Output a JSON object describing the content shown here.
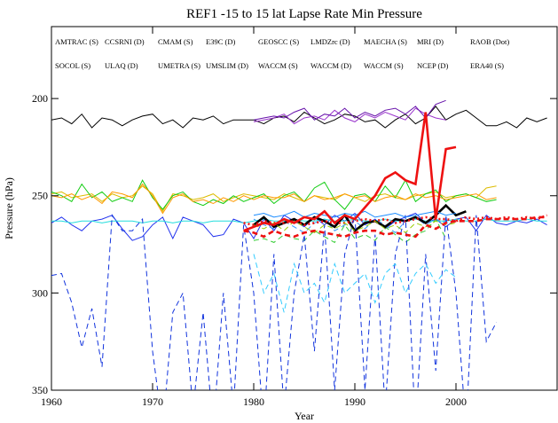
{
  "chart_data": {
    "type": "line",
    "title": "REF1 -15 to 15 lat Lapse Rate Min Pressure",
    "x_label": "Year",
    "y_label": "Pressure (hPa)",
    "xlim": [
      1960,
      2010
    ],
    "xticks": [
      1960,
      1970,
      1980,
      1990,
      2000
    ],
    "ylim": [
      350,
      163
    ],
    "yticks": [
      200,
      250,
      300,
      350
    ],
    "x": [
      1960,
      1961,
      1962,
      1963,
      1964,
      1965,
      1966,
      1967,
      1968,
      1969,
      1970,
      1971,
      1972,
      1973,
      1974,
      1975,
      1976,
      1977,
      1978,
      1979,
      1980,
      1981,
      1982,
      1983,
      1984,
      1985,
      1986,
      1987,
      1988,
      1989,
      1990,
      1991,
      1992,
      1993,
      1994,
      1995,
      1996,
      1997,
      1998,
      1999,
      2000,
      2001,
      2002,
      2003,
      2004,
      2005,
      2006,
      2007,
      2008,
      2009
    ],
    "series": [
      {
        "name": "AMTRAC (S)",
        "color": "#000000",
        "dash": "solid",
        "values": [
          211,
          210,
          213,
          208,
          215,
          210,
          211,
          214,
          211,
          209,
          208,
          213,
          211,
          215,
          210,
          211,
          209,
          213,
          211,
          211,
          211,
          213,
          210,
          209,
          212,
          207,
          210,
          213,
          211,
          208,
          209,
          212,
          211,
          215,
          211,
          208,
          213,
          210,
          204,
          211,
          208,
          206,
          210,
          214,
          214,
          212,
          215,
          210,
          212,
          210
        ]
      },
      {
        "name": "CCSRNI (D)",
        "color": "#9933cc",
        "dash": "solid",
        "values": [
          null,
          null,
          null,
          null,
          null,
          null,
          null,
          null,
          null,
          null,
          null,
          null,
          null,
          null,
          null,
          null,
          null,
          null,
          null,
          null,
          212,
          211,
          210,
          208,
          213,
          210,
          209,
          211,
          206,
          210,
          212,
          208,
          210,
          207,
          209,
          211,
          205,
          208,
          210,
          211,
          null,
          null,
          null,
          null,
          null,
          null,
          null,
          null,
          null,
          null
        ]
      },
      {
        "name": "CMAM (S)",
        "color": "#2233ee",
        "dash": "solid",
        "values": [
          264,
          261,
          265,
          268,
          263,
          262,
          260,
          267,
          273,
          271,
          265,
          261,
          272,
          261,
          263,
          265,
          271,
          270,
          262,
          264,
          272,
          262,
          268,
          260,
          263,
          266,
          261,
          265,
          260,
          263,
          259,
          265,
          262,
          267,
          263,
          261,
          259,
          264,
          262,
          266,
          262,
          261,
          268,
          260,
          264,
          265,
          263,
          264,
          262,
          265
        ]
      },
      {
        "name": "E39C (D)",
        "color": "#3399ff",
        "dash": "dashed",
        "values": [
          null,
          null,
          null,
          null,
          null,
          null,
          null,
          null,
          null,
          null,
          null,
          null,
          null,
          null,
          null,
          null,
          null,
          null,
          null,
          null,
          262,
          265,
          267,
          263,
          266,
          269,
          264,
          262,
          268,
          265,
          263,
          267,
          262,
          265,
          269,
          263,
          261,
          265,
          262,
          264,
          263,
          null,
          null,
          null,
          null,
          null,
          null,
          null,
          null,
          null
        ]
      },
      {
        "name": "GEOSCC (S)",
        "color": "#22dddd",
        "dash": "solid",
        "values": [
          263,
          263,
          264,
          263,
          263,
          264,
          263,
          263,
          263,
          264,
          263,
          263,
          264,
          263,
          263,
          264,
          263,
          263,
          263,
          264,
          263,
          262,
          263,
          263,
          262,
          263,
          263,
          262,
          263,
          263,
          262,
          263,
          263,
          262,
          263,
          263,
          262,
          263,
          263,
          263,
          262,
          263,
          263,
          262,
          263,
          263,
          263,
          262,
          263,
          263
        ]
      },
      {
        "name": "LMDZrc (D)",
        "color": "#33cc33",
        "dash": "dashed",
        "values": [
          null,
          null,
          null,
          null,
          null,
          null,
          null,
          null,
          null,
          null,
          null,
          null,
          null,
          null,
          null,
          null,
          null,
          null,
          null,
          null,
          273,
          272,
          274,
          270,
          272,
          273,
          268,
          271,
          274,
          265,
          272,
          270,
          273,
          266,
          270,
          274,
          270,
          268,
          262,
          272,
          null,
          null,
          null,
          null,
          null,
          null,
          null,
          null,
          null,
          null
        ]
      },
      {
        "name": "MAECHA (S)",
        "color": "#ddbb00",
        "dash": "solid",
        "values": [
          249,
          248,
          251,
          250,
          249,
          253,
          249,
          251,
          250,
          245,
          249,
          258,
          249,
          250,
          252,
          251,
          249,
          253,
          251,
          249,
          250,
          251,
          252,
          249,
          251,
          253,
          250,
          251,
          252,
          249,
          251,
          253,
          250,
          249,
          251,
          252,
          250,
          249,
          248,
          251,
          250,
          249,
          251,
          246,
          245,
          null,
          null,
          null,
          null,
          null
        ]
      },
      {
        "name": "MRI (D)",
        "color": "#000000",
        "dash": "solid",
        "bold": true,
        "values": [
          null,
          null,
          null,
          null,
          null,
          null,
          null,
          null,
          null,
          null,
          null,
          null,
          null,
          null,
          null,
          null,
          null,
          null,
          null,
          null,
          265,
          261,
          266,
          264,
          262,
          265,
          261,
          263,
          266,
          260,
          268,
          264,
          263,
          266,
          262,
          263,
          261,
          264,
          260,
          255,
          260,
          258,
          null,
          null,
          null,
          null,
          null,
          null,
          null,
          null
        ]
      },
      {
        "name": "RAOB (Dot)",
        "color": "#ee1111",
        "dash": "dotted",
        "bold": true,
        "values": [
          null,
          null,
          null,
          null,
          null,
          null,
          null,
          null,
          null,
          null,
          null,
          null,
          null,
          null,
          null,
          null,
          null,
          null,
          null,
          264,
          265,
          263,
          264,
          264,
          263,
          265,
          264,
          263,
          264,
          264,
          263,
          262,
          263,
          262,
          264,
          263,
          262,
          261,
          262,
          262,
          263,
          261,
          262,
          261,
          262,
          261,
          262,
          261,
          262,
          260
        ]
      },
      {
        "name": "SOCOL (S)",
        "color": "#6611aa",
        "dash": "solid",
        "values": [
          null,
          null,
          null,
          null,
          null,
          null,
          null,
          null,
          null,
          null,
          null,
          null,
          null,
          null,
          null,
          null,
          null,
          null,
          null,
          null,
          211,
          210,
          209,
          210,
          207,
          205,
          211,
          208,
          209,
          205,
          210,
          207,
          209,
          206,
          205,
          208,
          204,
          210,
          203,
          201,
          null,
          null,
          null,
          null,
          null,
          null,
          null,
          null,
          null,
          null
        ]
      },
      {
        "name": "ULAQ (D)",
        "color": "#1133dd",
        "dash": "dashed",
        "values": [
          291,
          290,
          305,
          328,
          308,
          338,
          260,
          268,
          268,
          262,
          330,
          370,
          310,
          300,
          360,
          310,
          370,
          300,
          360,
          265,
          300,
          370,
          280,
          360,
          300,
          270,
          330,
          265,
          350,
          280,
          260,
          350,
          270,
          360,
          280,
          260,
          370,
          280,
          340,
          260,
          300,
          370,
          260,
          325,
          315,
          null,
          null,
          null,
          null,
          null
        ]
      },
      {
        "name": "UMETRA (S)",
        "color": "#1a8cff",
        "dash": "solid",
        "values": [
          null,
          null,
          null,
          null,
          null,
          null,
          null,
          null,
          null,
          null,
          null,
          null,
          null,
          null,
          null,
          null,
          null,
          null,
          null,
          null,
          260,
          259,
          261,
          260,
          258,
          261,
          259,
          260,
          261,
          259,
          260,
          258,
          261,
          260,
          259,
          261,
          260,
          259,
          258,
          260,
          259,
          null,
          null,
          null,
          null,
          null,
          null,
          null,
          null,
          null
        ]
      },
      {
        "name": "UMSLIM (D)",
        "color": "#33ccff",
        "dash": "dashed",
        "values": [
          null,
          null,
          null,
          null,
          null,
          null,
          null,
          null,
          null,
          null,
          null,
          null,
          null,
          null,
          null,
          null,
          null,
          null,
          null,
          null,
          280,
          300,
          290,
          310,
          285,
          300,
          295,
          305,
          285,
          300,
          295,
          290,
          305,
          290,
          285,
          300,
          290,
          285,
          295,
          288,
          292,
          null,
          null,
          null,
          null,
          null,
          null,
          null,
          null,
          null
        ]
      },
      {
        "name": "WACCM (S)",
        "color": "#11cc11",
        "dash": "solid",
        "values": [
          248,
          250,
          253,
          244,
          251,
          248,
          253,
          251,
          253,
          242,
          251,
          257,
          250,
          248,
          253,
          255,
          252,
          254,
          250,
          253,
          251,
          249,
          254,
          250,
          248,
          253,
          246,
          243,
          252,
          257,
          250,
          249,
          253,
          245,
          251,
          242,
          253,
          249,
          247,
          253,
          250,
          249,
          251,
          253,
          252,
          null,
          null,
          null,
          null,
          null
        ]
      },
      {
        "name": "WACCM (D)",
        "color": "#99cc00",
        "dash": "dashed",
        "values": [
          null,
          null,
          null,
          null,
          null,
          null,
          null,
          null,
          null,
          null,
          null,
          null,
          null,
          null,
          null,
          null,
          null,
          null,
          null,
          null,
          265,
          267,
          264,
          268,
          263,
          266,
          269,
          265,
          267,
          264,
          268,
          266,
          263,
          267,
          265,
          269,
          264,
          266,
          263,
          265,
          264,
          null,
          null,
          null,
          null,
          null,
          null,
          null,
          null,
          null
        ]
      },
      {
        "name": "WACCM (S)",
        "color": "#ff9900",
        "dash": "solid",
        "values": [
          250,
          251,
          249,
          252,
          250,
          254,
          248,
          249,
          251,
          244,
          250,
          259,
          251,
          249,
          253,
          252,
          254,
          251,
          253,
          250,
          252,
          250,
          251,
          251,
          249,
          253,
          250,
          252,
          251,
          249,
          251,
          250,
          253,
          251,
          250,
          252,
          249,
          251,
          250,
          252,
          251,
          250,
          249,
          252,
          251,
          null,
          null,
          null,
          null,
          null
        ]
      },
      {
        "name": "NCEP (D)",
        "color": "#ee1111",
        "dash": "solid",
        "bold": true,
        "values": [
          null,
          null,
          null,
          null,
          null,
          null,
          null,
          null,
          null,
          null,
          null,
          null,
          null,
          null,
          null,
          null,
          null,
          null,
          null,
          268,
          266,
          264,
          265,
          262,
          264,
          261,
          262,
          258,
          264,
          260,
          262,
          256,
          250,
          241,
          238,
          242,
          244,
          207,
          262,
          226,
          225,
          null,
          null,
          null,
          null,
          null,
          null,
          null,
          null,
          null
        ]
      },
      {
        "name": "ERA40 (S)",
        "color": "#ee1111",
        "dash": "dashed",
        "bold": true,
        "values": [
          null,
          null,
          null,
          null,
          null,
          null,
          null,
          null,
          null,
          null,
          null,
          null,
          null,
          null,
          null,
          null,
          null,
          null,
          null,
          268,
          269,
          271,
          268,
          270,
          271,
          269,
          268,
          269,
          270,
          271,
          269,
          268,
          268,
          270,
          269,
          270,
          271,
          265,
          267,
          264,
          263,
          263,
          263,
          262,
          262,
          262,
          262,
          262,
          261,
          261
        ]
      }
    ]
  }
}
